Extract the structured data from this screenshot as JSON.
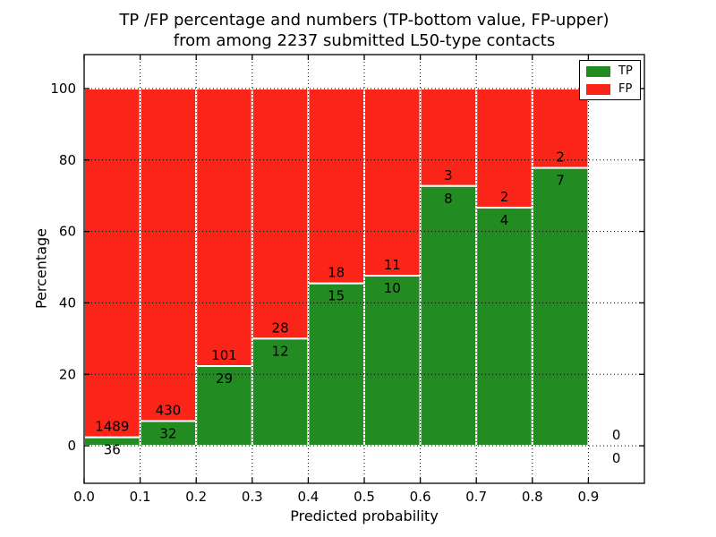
{
  "chart_data": {
    "type": "bar",
    "stacked": true,
    "orientation": "vertical",
    "title_lines": [
      "TP /FP percentage and numbers (TP-bottom value, FP-upper)",
      "from among 2237 submitted L50-type contacts"
    ],
    "xlabel": "Predicted probability",
    "ylabel": "Percentage",
    "xlim": [
      0.0,
      1.0
    ],
    "ylim": [
      -10.5,
      109.5
    ],
    "xtick_values": [
      0.0,
      0.1,
      0.2,
      0.3,
      0.4,
      0.5,
      0.6,
      0.7,
      0.8,
      0.9
    ],
    "xtick_labels": [
      "0.0",
      "0.1",
      "0.2",
      "0.3",
      "0.4",
      "0.5",
      "0.6",
      "0.7",
      "0.8",
      "0.9"
    ],
    "ytick_values": [
      0,
      20,
      40,
      60,
      80,
      100
    ],
    "ytick_labels": [
      "0",
      "20",
      "40",
      "60",
      "80",
      "100"
    ],
    "grid_style": "dotted",
    "bin_edges": [
      0.0,
      0.1,
      0.2,
      0.3,
      0.4,
      0.5,
      0.6,
      0.7,
      0.8,
      0.9,
      1.0
    ],
    "series": [
      {
        "name": "TP",
        "color": "#228b22",
        "counts": [
          36,
          32,
          29,
          12,
          15,
          10,
          8,
          4,
          7,
          0
        ]
      },
      {
        "name": "FP",
        "color": "#fb2418",
        "counts": [
          1489,
          430,
          101,
          28,
          18,
          11,
          3,
          2,
          2,
          0
        ]
      }
    ],
    "bar_edge_color": "#ffffff",
    "legend": {
      "position": "upper right",
      "entries": [
        "TP",
        "FP"
      ]
    },
    "total_contacts": 2237
  }
}
